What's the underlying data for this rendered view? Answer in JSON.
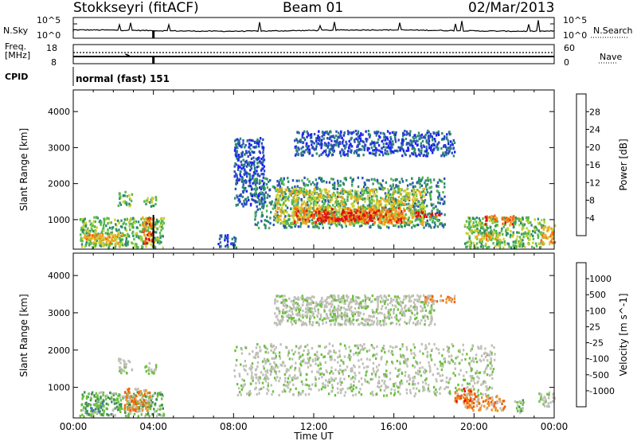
{
  "header": {
    "site": "Stokkseyri (fitACF)",
    "beam": "Beam 01",
    "date": "02/Mar/2013"
  },
  "nsky": {
    "label": "N.Sky",
    "ticks": [
      "10^5",
      "10^0"
    ]
  },
  "nsearch": {
    "label": "N.Search",
    "ticks": [
      "10^5",
      "10^0"
    ]
  },
  "freq": {
    "label": "Freq.",
    "unit": "[MHz]",
    "ticks": [
      "18",
      "8"
    ]
  },
  "nave": {
    "label": "Nave",
    "ticks": [
      "60",
      "0"
    ]
  },
  "cpid": {
    "label": "CPID",
    "mode": "normal (fast) 151"
  },
  "chart_data": [
    {
      "type": "heatmap",
      "name": "power",
      "ylabel": "Slant Range [km]",
      "yticks": [
        1000,
        2000,
        3000,
        4000
      ],
      "ylim": [
        180,
        4600
      ],
      "xlim": [
        0,
        24
      ],
      "xtick_labels": [
        "00:00",
        "04:00",
        "08:00",
        "12:00",
        "16:00",
        "20:00",
        "00:00"
      ],
      "colorbar": {
        "label": "Power [dB]",
        "ticks": [
          "4",
          "8",
          "12",
          "16",
          "20",
          "24",
          "28"
        ],
        "colors": [
          "#1e1eff",
          "#2a4fb8",
          "#2e8b70",
          "#52b84a",
          "#c8d130",
          "#f2a51c",
          "#f26a10",
          "#e01010"
        ]
      },
      "regions": [
        {
          "t0": 0.3,
          "t1": 4.5,
          "r0": 250,
          "r1": 1100,
          "level": 3
        },
        {
          "t0": 0.5,
          "t1": 2.4,
          "r0": 350,
          "r1": 650,
          "level": 5
        },
        {
          "t0": 2.2,
          "t1": 2.9,
          "r0": 1400,
          "r1": 1800,
          "level": 3
        },
        {
          "t0": 3.5,
          "t1": 4.1,
          "r0": 1400,
          "r1": 1700,
          "level": 3
        },
        {
          "t0": 3.4,
          "t1": 4.0,
          "r0": 350,
          "r1": 1100,
          "level": 6
        },
        {
          "t0": 7.2,
          "t1": 8.1,
          "r0": 250,
          "r1": 600,
          "level": 1
        },
        {
          "t0": 8.0,
          "t1": 9.5,
          "r0": 1400,
          "r1": 3300,
          "level": 1
        },
        {
          "t0": 9.0,
          "t1": 18.5,
          "r0": 800,
          "r1": 2200,
          "level": 2
        },
        {
          "t0": 10.0,
          "t1": 17.5,
          "r0": 900,
          "r1": 1900,
          "level": 4
        },
        {
          "t0": 11.0,
          "t1": 16.5,
          "r0": 950,
          "r1": 1350,
          "level": 6
        },
        {
          "t0": 12.0,
          "t1": 15.0,
          "r0": 1000,
          "r1": 1250,
          "level": 7
        },
        {
          "t0": 17.0,
          "t1": 18.3,
          "r0": 1100,
          "r1": 1250,
          "level": 7
        },
        {
          "t0": 11.0,
          "t1": 19.0,
          "r0": 2800,
          "r1": 3500,
          "level": 1
        },
        {
          "t0": 19.5,
          "t1": 23.5,
          "r0": 250,
          "r1": 1100,
          "level": 3
        },
        {
          "t0": 20.5,
          "t1": 22.0,
          "r0": 900,
          "r1": 1150,
          "level": 6
        },
        {
          "t0": 20.0,
          "t1": 21.3,
          "r0": 450,
          "r1": 650,
          "level": 5
        },
        {
          "t0": 23.3,
          "t1": 24.0,
          "r0": 350,
          "r1": 900,
          "level": 5
        }
      ]
    },
    {
      "type": "heatmap",
      "name": "velocity",
      "ylabel": "Slant Range [km]",
      "yticks": [
        1000,
        2000,
        3000,
        4000
      ],
      "ylim": [
        180,
        4600
      ],
      "xlim": [
        0,
        24
      ],
      "xlabel": "Time UT",
      "xtick_labels": [
        "00:00",
        "04:00",
        "08:00",
        "12:00",
        "16:00",
        "20:00",
        "00:00"
      ],
      "colorbar": {
        "label": "Velocity [m s^-1]",
        "ticks": [
          "1000",
          "500",
          "100",
          "25",
          "-25",
          "-100",
          "-500",
          "-1000"
        ],
        "colors": [
          "#2040c0",
          "#4a70c8",
          "#3a9050",
          "#6cc040",
          "#c0c0b8",
          "#c0c0b8",
          "#f09020",
          "#f06010",
          "#e01010"
        ]
      },
      "regions": [
        {
          "t0": 0.3,
          "t1": 4.5,
          "r0": 250,
          "r1": 900,
          "level": 3
        },
        {
          "t0": 0.5,
          "t1": 1.5,
          "r0": 300,
          "r1": 600,
          "level": 2
        },
        {
          "t0": 2.5,
          "t1": 3.8,
          "r0": 400,
          "r1": 1000,
          "level": 6
        },
        {
          "t0": 2.2,
          "t1": 2.9,
          "r0": 1400,
          "r1": 1800,
          "level": 4
        },
        {
          "t0": 3.5,
          "t1": 4.1,
          "r0": 1400,
          "r1": 1700,
          "level": 4
        },
        {
          "t0": 8.0,
          "t1": 21.0,
          "r0": 800,
          "r1": 2200,
          "level": 4
        },
        {
          "t0": 10.0,
          "t1": 18.0,
          "r0": 2700,
          "r1": 3500,
          "level": 4
        },
        {
          "t0": 17.5,
          "t1": 19.0,
          "r0": 3300,
          "r1": 3500,
          "level": 6
        },
        {
          "t0": 19.5,
          "t1": 21.5,
          "r0": 400,
          "r1": 800,
          "level": 6
        },
        {
          "t0": 19.0,
          "t1": 20.0,
          "r0": 600,
          "r1": 1000,
          "level": 7
        },
        {
          "t0": 22.0,
          "t1": 22.5,
          "r0": 350,
          "r1": 700,
          "level": 3
        },
        {
          "t0": 23.2,
          "t1": 24.0,
          "r0": 500,
          "r1": 900,
          "level": 4
        }
      ]
    }
  ]
}
